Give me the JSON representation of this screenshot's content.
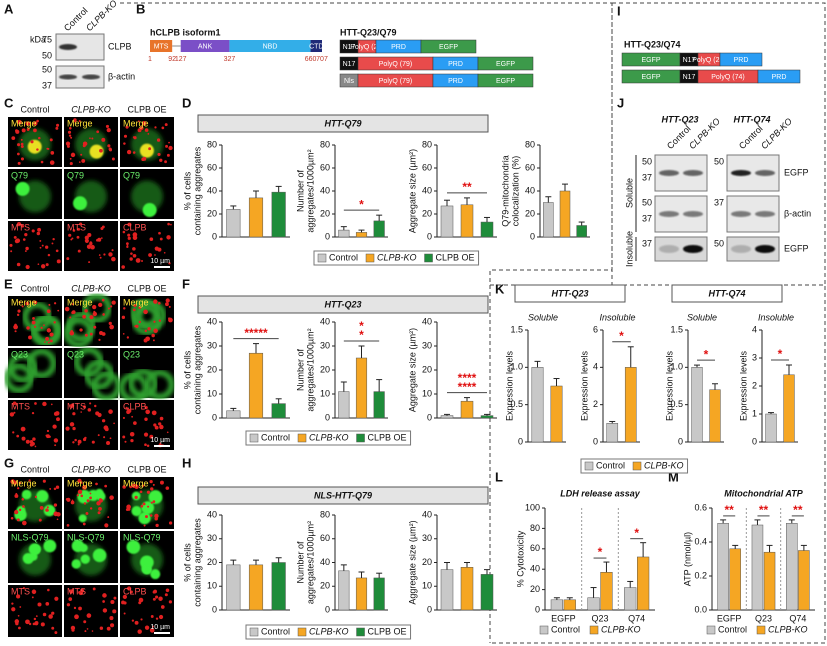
{
  "figure": {
    "A": {
      "label": "A",
      "kda": "kDa",
      "lanes": [
        "Control",
        "CLPB-KO"
      ],
      "markers_top": [
        "75",
        "50"
      ],
      "markers_bottom": [
        "50",
        "37"
      ],
      "bands": [
        "CLPB",
        "β-actin"
      ]
    },
    "B": {
      "label": "B",
      "title": "hCLPB isoform1",
      "domains": [
        "MTS",
        "ANK",
        "NBD",
        "CTD"
      ],
      "positions": [
        1,
        92,
        127,
        327,
        660,
        707
      ],
      "construct_title": "HTT-Q23/Q79",
      "constructs": [
        [
          "N17",
          "PolyQ (23)",
          "PRD",
          "EGFP"
        ],
        [
          "N17",
          "PolyQ (79)",
          "PRD",
          "EGFP"
        ],
        [
          "Nls",
          "PolyQ (79)",
          "PRD",
          "EGFP"
        ]
      ]
    },
    "C": {
      "label": "C",
      "columns": [
        "Control",
        "CLPB-KO",
        "CLPB OE"
      ],
      "cells": [
        [
          "Merge",
          "Merge",
          "Merge"
        ],
        [
          "Q79",
          "Q79",
          "Q79"
        ],
        [
          "MTS",
          "MTS",
          "CLPB"
        ]
      ],
      "scale": "10 µm"
    },
    "D": {
      "label": "D",
      "title": "HTT-Q79"
    },
    "E": {
      "label": "E",
      "columns": [
        "Control",
        "CLPB-KO",
        "CLPB OE"
      ],
      "cells": [
        [
          "Merge",
          "Merge",
          "Merge"
        ],
        [
          "Q23",
          "Q23",
          "Q23"
        ],
        [
          "MTS",
          "MTS",
          "CLPB"
        ]
      ],
      "scale": "10 µm"
    },
    "F": {
      "label": "F",
      "title": "HTT-Q23"
    },
    "G": {
      "label": "G",
      "columns": [
        "Control",
        "CLPB-KO",
        "CLPB OE"
      ],
      "cells": [
        [
          "Merge",
          "Merge",
          "Merge"
        ],
        [
          "NLS-Q79",
          "NLS-Q79",
          "NLS-Q79"
        ],
        [
          "MTS",
          "MTS",
          "CLPB"
        ]
      ],
      "scale": "10 µm"
    },
    "H": {
      "label": "H",
      "title": "NLS-HTT-Q79"
    },
    "I": {
      "label": "I",
      "construct_title": "HTT-Q23/Q74",
      "constructs": [
        [
          "EGFP",
          "N17",
          "PolyQ (23)",
          "PRD"
        ],
        [
          "EGFP",
          "N17",
          "PolyQ (74)",
          "PRD"
        ]
      ]
    },
    "J": {
      "label": "J",
      "groups": [
        "HTT-Q23",
        "HTT-Q74"
      ],
      "lanes": [
        "Control",
        "CLPB-KO"
      ],
      "bands": [
        "EGFP",
        "β-actin",
        "EGFP"
      ],
      "fractions": [
        "Soluble",
        "Insoluble"
      ],
      "markers_left": [
        [
          "50",
          "37"
        ],
        [
          "50",
          "37"
        ],
        [
          "37"
        ]
      ],
      "markers_right": [
        [
          "50"
        ],
        [
          "37"
        ],
        [
          "50"
        ]
      ]
    },
    "K": {
      "label": "K",
      "titles": [
        "HTT-Q23",
        "HTT-Q74"
      ]
    },
    "L": {
      "label": "L"
    },
    "M": {
      "label": "M"
    }
  },
  "legends": [
    {
      "items": [
        {
          "name": "Control",
          "color": "#c8c8c8"
        },
        {
          "name": "CLPB-KO",
          "color": "#f5a623"
        },
        {
          "name": "CLPB OE",
          "color": "#1e8c3a"
        }
      ]
    },
    {
      "items": [
        {
          "name": "Control",
          "color": "#c8c8c8"
        },
        {
          "name": "CLPB-KO",
          "color": "#f5a623"
        },
        {
          "name": "CLPB OE",
          "color": "#1e8c3a"
        }
      ]
    },
    {
      "items": [
        {
          "name": "Control",
          "color": "#c8c8c8"
        },
        {
          "name": "CLPB-KO",
          "color": "#f5a623"
        },
        {
          "name": "CLPB OE",
          "color": "#1e8c3a"
        }
      ]
    },
    {
      "items": [
        {
          "name": "Control",
          "color": "#c8c8c8"
        },
        {
          "name": "CLPB-KO",
          "color": "#f5a623"
        }
      ]
    }
  ],
  "chart_data": [
    {
      "type": "bar",
      "ylabel": [
        "% of cells",
        "containing aggregates"
      ],
      "ylim": [
        0,
        80
      ],
      "yticks": [
        0,
        20,
        40,
        60,
        80
      ],
      "values": [
        24,
        34,
        39
      ],
      "errors": [
        3,
        6,
        5
      ],
      "colors": [
        "#c8c8c8",
        "#f5a623",
        "#1e8c3a"
      ]
    },
    {
      "type": "bar",
      "ylabel": [
        "Number of",
        "aggregates/1000µm²"
      ],
      "ylim": [
        0,
        80
      ],
      "yticks": [
        0,
        20,
        40,
        60,
        80
      ],
      "values": [
        6,
        4,
        14
      ],
      "errors": [
        3,
        2,
        5
      ],
      "colors": [
        "#c8c8c8",
        "#f5a623",
        "#1e8c3a"
      ],
      "significance": [
        "*"
      ]
    },
    {
      "type": "bar",
      "ylabel": [
        "Aggregate size (µm²)"
      ],
      "ylim": [
        0,
        80
      ],
      "yticks": [
        0,
        20,
        40,
        60,
        80
      ],
      "values": [
        27,
        28,
        13
      ],
      "errors": [
        5,
        6,
        4
      ],
      "colors": [
        "#c8c8c8",
        "#f5a623",
        "#1e8c3a"
      ],
      "significance": [
        "**"
      ]
    },
    {
      "type": "bar",
      "ylabel": [
        "Q79-mitochondria",
        "colocalization (%)"
      ],
      "ylim": [
        0,
        80
      ],
      "yticks": [
        0,
        20,
        40,
        60,
        80
      ],
      "values": [
        30,
        40,
        10
      ],
      "errors": [
        5,
        6,
        3
      ],
      "colors": [
        "#c8c8c8",
        "#f5a623",
        "#1e8c3a"
      ]
    },
    {
      "type": "bar",
      "ylabel": [
        "% of cells",
        "containing aggregates"
      ],
      "ylim": [
        0,
        40
      ],
      "yticks": [
        0,
        10,
        20,
        30,
        40
      ],
      "values": [
        3,
        27,
        6
      ],
      "errors": [
        1,
        4,
        2
      ],
      "colors": [
        "#c8c8c8",
        "#f5a623",
        "#1e8c3a"
      ],
      "significance": [
        "*****"
      ]
    },
    {
      "type": "bar",
      "ylabel": [
        "Number of",
        "aggregates/1000µm²"
      ],
      "ylim": [
        0,
        40
      ],
      "yticks": [
        0,
        10,
        20,
        30,
        40
      ],
      "values": [
        11,
        25,
        11
      ],
      "errors": [
        4,
        5,
        5
      ],
      "colors": [
        "#c8c8c8",
        "#f5a623",
        "#1e8c3a"
      ],
      "significance": [
        "*",
        "*"
      ]
    },
    {
      "type": "bar",
      "ylabel": [
        "Aggregate size (µm²)"
      ],
      "ylim": [
        0,
        40
      ],
      "yticks": [
        0,
        10,
        20,
        30,
        40
      ],
      "values": [
        1,
        7,
        1
      ],
      "errors": [
        0.5,
        1.5,
        0.5
      ],
      "colors": [
        "#c8c8c8",
        "#f5a623",
        "#1e8c3a"
      ],
      "significance": [
        "****",
        "****"
      ]
    },
    {
      "type": "bar",
      "ylabel": [
        "% of cells",
        "containing aggregates"
      ],
      "ylim": [
        0,
        40
      ],
      "yticks": [
        0,
        10,
        20,
        30,
        40
      ],
      "values": [
        19,
        19,
        20
      ],
      "errors": [
        2,
        2,
        2
      ],
      "colors": [
        "#c8c8c8",
        "#f5a623",
        "#1e8c3a"
      ]
    },
    {
      "type": "bar",
      "ylabel": [
        "Number of",
        "aggregates/1000µm²"
      ],
      "ylim": [
        0,
        80
      ],
      "yticks": [
        0,
        20,
        40,
        60,
        80
      ],
      "values": [
        33,
        27,
        27
      ],
      "errors": [
        5,
        5,
        4
      ],
      "colors": [
        "#c8c8c8",
        "#f5a623",
        "#1e8c3a"
      ]
    },
    {
      "type": "bar",
      "ylabel": [
        "Aggregate size (µm²)"
      ],
      "ylim": [
        0,
        40
      ],
      "yticks": [
        0,
        10,
        20,
        30,
        40
      ],
      "values": [
        17,
        18,
        15
      ],
      "errors": [
        3,
        2,
        2
      ],
      "colors": [
        "#c8c8c8",
        "#f5a623",
        "#1e8c3a"
      ]
    },
    {
      "type": "bar",
      "title": "Soluble",
      "ylabel": [
        "Expression levels"
      ],
      "ylim": [
        0,
        1.5
      ],
      "yticks": [
        0,
        0.5,
        {
          "value": 1,
          "label": "1.0"
        },
        1.5
      ],
      "values": [
        1.0,
        0.75
      ],
      "errors": [
        0.08,
        0.1
      ],
      "colors": [
        "#c8c8c8",
        "#f5a623"
      ]
    },
    {
      "type": "bar",
      "title": "Insoluble",
      "ylabel": [
        "Expression levels"
      ],
      "ylim": [
        0,
        6
      ],
      "yticks": [
        0,
        2,
        4,
        6
      ],
      "values": [
        1,
        4
      ],
      "errors": [
        0.1,
        1.1
      ],
      "colors": [
        "#c8c8c8",
        "#f5a623"
      ],
      "significance": [
        "*"
      ]
    },
    {
      "type": "bar",
      "title": "Soluble",
      "ylabel": [
        "Expression levels"
      ],
      "ylim": [
        0,
        1.5
      ],
      "yticks": [
        0,
        0.5,
        {
          "value": 1,
          "label": "1.0"
        },
        1.5
      ],
      "values": [
        1.0,
        0.7
      ],
      "errors": [
        0.03,
        0.08
      ],
      "colors": [
        "#c8c8c8",
        "#f5a623"
      ],
      "significance": [
        "*"
      ]
    },
    {
      "type": "bar",
      "title": "Insoluble",
      "ylabel": [
        "Expression levels"
      ],
      "ylim": [
        0,
        4
      ],
      "yticks": [
        0,
        1,
        2,
        3,
        4
      ],
      "values": [
        1,
        2.4
      ],
      "errors": [
        0.05,
        0.35
      ],
      "colors": [
        "#c8c8c8",
        "#f5a623"
      ],
      "significance": [
        "*"
      ]
    },
    {
      "type": "grouped-bar",
      "title": "LDH release assay",
      "ylabel": [
        "% Cytotoxicity"
      ],
      "ylim": [
        0,
        100
      ],
      "yticks": [
        0,
        20,
        40,
        60,
        80,
        100
      ],
      "categories": [
        "EGFP",
        "Q23",
        "Q74"
      ],
      "series": [
        {
          "name": "Control",
          "color": "#c8c8c8",
          "values": [
            10,
            12,
            22
          ],
          "errors": [
            2,
            10,
            6
          ]
        },
        {
          "name": "CLPB-KO",
          "color": "#f5a623",
          "values": [
            10,
            37,
            52
          ],
          "errors": [
            2,
            10,
            14
          ]
        }
      ],
      "significance": [
        null,
        "*",
        "*"
      ]
    },
    {
      "type": "grouped-bar",
      "title": "Mitochondrial ATP",
      "ylabel": [
        "ATP (nmol/µl)"
      ],
      "ylim": [
        0,
        0.6
      ],
      "yticks": [
        {
          "value": 0,
          "label": "0.0"
        },
        0.2,
        0.4,
        0.6
      ],
      "categories": [
        "EGFP",
        "Q23",
        "Q74"
      ],
      "series": [
        {
          "name": "Control",
          "color": "#c8c8c8",
          "values": [
            0.51,
            0.5,
            0.51
          ],
          "errors": [
            0.02,
            0.03,
            0.02
          ]
        },
        {
          "name": "CLPB-KO",
          "color": "#f5a623",
          "values": [
            0.36,
            0.34,
            0.35
          ],
          "errors": [
            0.02,
            0.04,
            0.03
          ]
        }
      ],
      "significance": [
        "**",
        "**",
        "**"
      ]
    }
  ]
}
